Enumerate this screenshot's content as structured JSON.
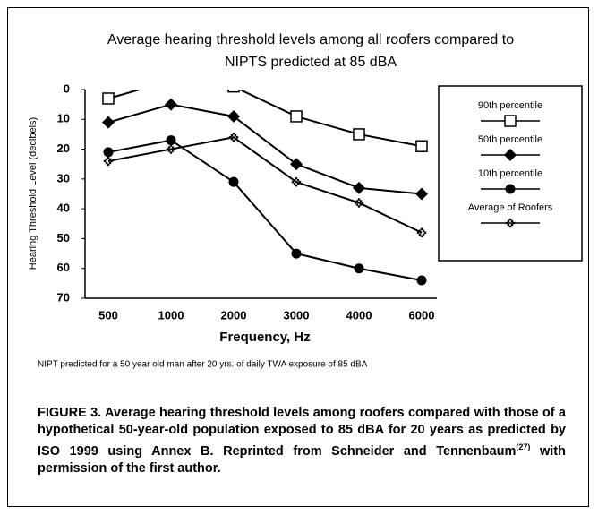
{
  "chart_data": {
    "type": "line",
    "title": [
      "Average hearing threshold levels among all roofers compared to",
      "NIPTS predicted at 85 dBA"
    ],
    "y_label": "Hearing Threshold Level (decibels)",
    "x_label": "Frequency, Hz",
    "note": "NIPT predicted for a 50 year old man after 20 yrs. of daily TWA exposure of 85 dBA",
    "categories": [
      "500",
      "1000",
      "2000",
      "3000",
      "4000",
      "6000"
    ],
    "ylim": [
      0,
      70
    ],
    "y_inverted": true,
    "yticks": [
      0,
      10,
      20,
      30,
      40,
      50,
      60,
      70
    ],
    "series": [
      {
        "name": "90th percentile",
        "color": "#000000",
        "marker": "square-open",
        "values": [
          3,
          -3,
          -1,
          9,
          15,
          19
        ]
      },
      {
        "name": "50th percentile",
        "color": "#000000",
        "marker": "diamond",
        "values": [
          11,
          5,
          9,
          25,
          33,
          35
        ]
      },
      {
        "name": "10th percentile",
        "color": "#000000",
        "marker": "circle",
        "values": [
          21,
          17,
          31,
          55,
          60,
          64
        ]
      },
      {
        "name": "Average of Roofers",
        "color": "#000000",
        "marker": "dotted-diamond",
        "values": [
          24,
          20,
          16,
          31,
          38,
          48
        ]
      }
    ]
  },
  "caption": [
    "FIGURE 3.  Average hearing threshold levels among roofers compared with those of a hypothetical 50-year-old population exposed to 85 dBA for 20 years as predicted by ISO 1999 using Annex B. Reprinted from Schneider and Tennenbaum",
    "(27)",
    " with permission of the first author."
  ]
}
